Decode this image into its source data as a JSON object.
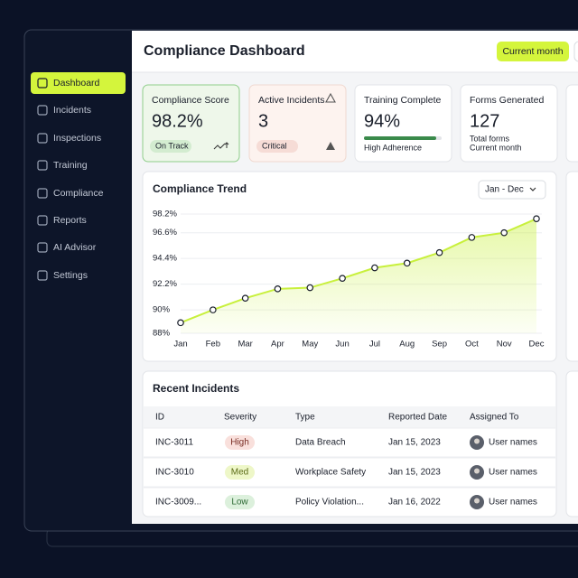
{
  "sidebar": {
    "items": [
      "Dashboard",
      "Incidents",
      "Inspections",
      "Training",
      "Compliance",
      "Reports",
      "AI Advisor",
      "Settings"
    ],
    "active": 0
  },
  "header": {
    "title": "Compliance Dashboard",
    "button": "Current month"
  },
  "cards": [
    {
      "title": "Compliance Score",
      "value": "98.2%",
      "badge": "On Track"
    },
    {
      "title": "Active Incidents",
      "value": "3",
      "badge": "Critical"
    },
    {
      "title": "Training Complete",
      "value": "94%",
      "note": "High Adherence"
    },
    {
      "title": "Forms Generated",
      "value": "127",
      "note": "Total forms",
      "note2": "Current month"
    }
  ],
  "trend_chart": {
    "type": "line",
    "title": "Compliance Trend",
    "range_button": "Jan - Dec",
    "color": "#c8f03c",
    "categories": [
      "Jan",
      "Feb",
      "Mar",
      "Apr",
      "May",
      "Jun",
      "Jul",
      "Aug",
      "Sep",
      "Oct",
      "Nov",
      "Dec"
    ],
    "values": [
      88.9,
      90.0,
      91.0,
      91.8,
      91.9,
      92.7,
      93.6,
      94.0,
      94.9,
      96.2,
      96.6,
      97.8
    ],
    "ylim": [
      88,
      98.2
    ],
    "yticks": [
      {
        "value": 98.2,
        "label": "98.2%"
      },
      {
        "value": 96.6,
        "label": "96.6%"
      },
      {
        "value": 94.4,
        "label": "94.4%"
      },
      {
        "value": 92.2,
        "label": "92.2%"
      },
      {
        "value": 90,
        "label": "90%"
      },
      {
        "value": 88,
        "label": "88%"
      }
    ],
    "grid": true
  },
  "incidents": {
    "title": "Recent Incidents",
    "columns": [
      "ID",
      "Severity",
      "Type",
      "Reported Date",
      "Assigned To"
    ],
    "rows": [
      [
        "INC-3011",
        "High",
        "Data Breach",
        "Jan 15, 2023",
        "User names"
      ],
      [
        "INC-3010",
        "Med",
        "Workplace Safety",
        "Jan 15, 2023",
        "User names"
      ],
      [
        "INC-3009...",
        "Low",
        "Policy Violation...",
        "Jan 16, 2022",
        "User names"
      ]
    ]
  }
}
